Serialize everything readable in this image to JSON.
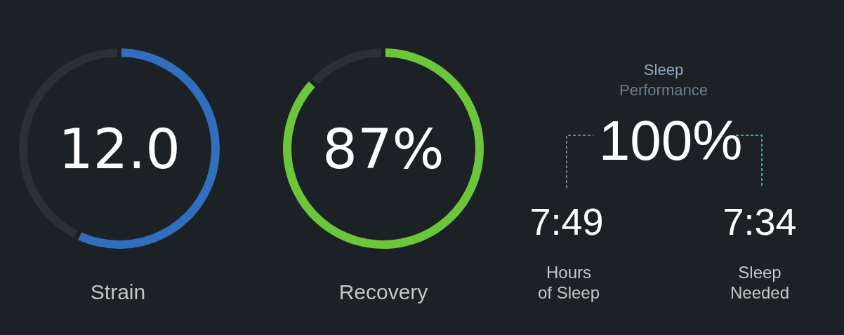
{
  "chart_data": [
    {
      "type": "donut",
      "categories": [
        null,
        null
      ],
      "values": [
        57.1,
        42.9
      ],
      "colors": [
        "#2f6fbd",
        "#2a2f38"
      ],
      "annotations": [
        "12.0"
      ],
      "xlabel": "Strain"
    },
    {
      "type": "donut",
      "categories": [
        null,
        null
      ],
      "values": [
        87,
        13
      ],
      "colors": [
        "#6cc63a",
        "#2a2f38"
      ],
      "annotations": [
        "87%"
      ],
      "xlabel": "Recovery"
    },
    {
      "type": "other",
      "title": "Sleep\nPerformance",
      "annotations": [
        "100%",
        "7:49",
        "Hours\nof Sleep",
        "7:34",
        "Sleep\nNeeded"
      ]
    }
  ]
}
